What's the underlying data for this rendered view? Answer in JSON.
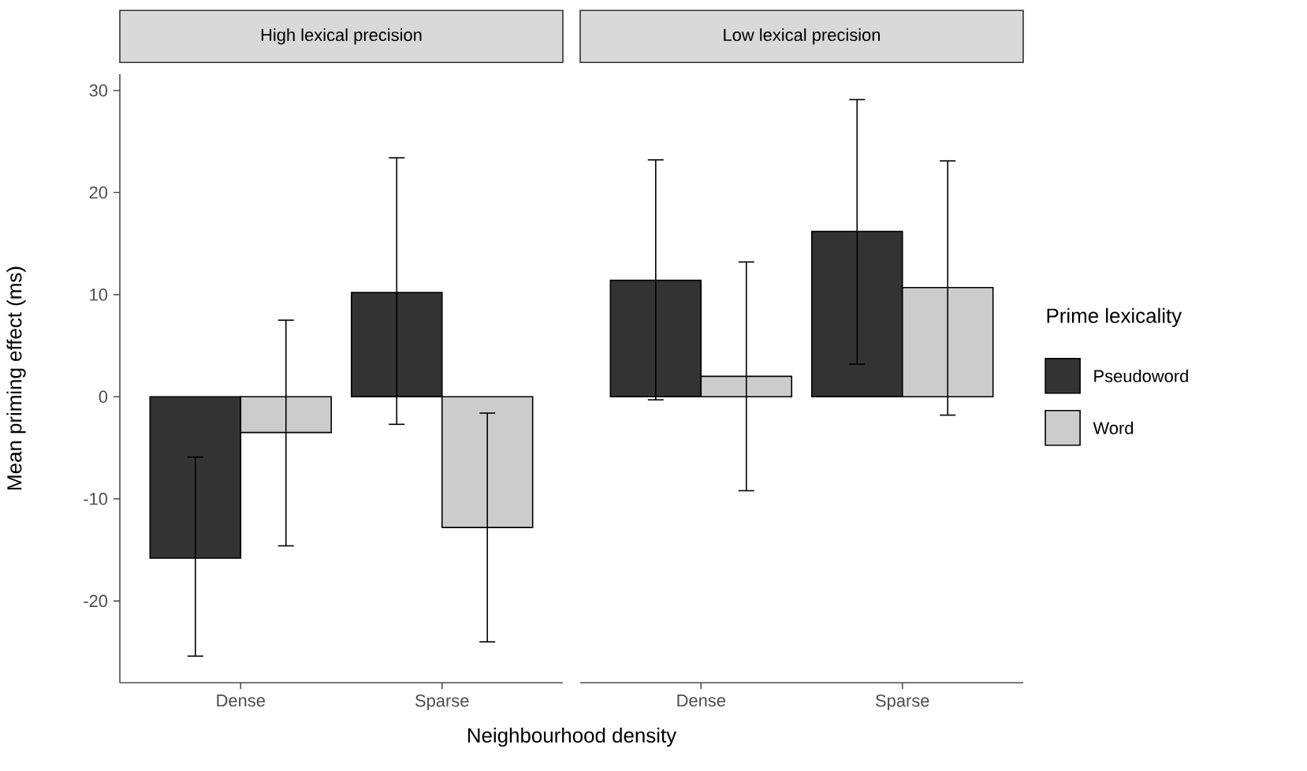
{
  "chart_data": [
    {
      "type": "bar",
      "title": "High lexical precision",
      "xlabel": "Neighbourhood density",
      "ylabel": "Mean priming effect (ms)",
      "categories": [
        "Dense",
        "Sparse"
      ],
      "ylim": [
        -28,
        31.6
      ],
      "yticks": [
        -20,
        -10,
        0,
        10,
        20,
        30
      ],
      "series": [
        {
          "color": "#333333",
          "values": [
            -15.8,
            10.2
          ],
          "errors": [
            [
              -25.4,
              -5.9
            ],
            [
              -2.7,
              23.4
            ]
          ]
        },
        {
          "color": "#cccccc",
          "values": [
            -3.5,
            -12.8
          ],
          "errors": [
            [
              -14.6,
              7.5
            ],
            [
              -24.0,
              -1.6
            ]
          ]
        }
      ]
    },
    {
      "type": "bar",
      "title": "Low lexical precision",
      "legend_title": "Prime lexicality",
      "legend": "right",
      "tick_labels": "x",
      "categories": [
        "Dense",
        "Sparse"
      ],
      "yticks": [
        -20,
        -10,
        0,
        10,
        20,
        30
      ],
      "series": [
        {
          "name": "Pseudoword",
          "color": "#333333",
          "values": [
            11.4,
            16.2
          ],
          "errors": [
            [
              -0.3,
              23.2
            ],
            [
              3.2,
              29.1
            ]
          ]
        },
        {
          "name": "Word",
          "color": "#cccccc",
          "values": [
            2.0,
            10.7
          ],
          "errors": [
            [
              -9.2,
              13.2
            ],
            [
              -1.8,
              23.1
            ]
          ]
        }
      ]
    }
  ]
}
